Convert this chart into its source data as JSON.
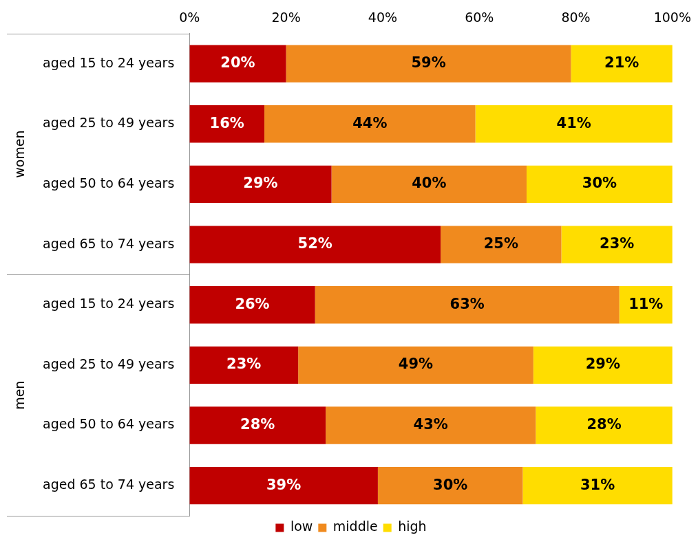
{
  "chart_data": {
    "type": "bar",
    "orientation": "horizontal",
    "stacked": true,
    "categories": [
      "aged 15 to 24 years",
      "aged 25 to 49 years",
      "aged 50 to 64 years",
      "aged 65 to 74 years",
      "aged 15 to 24 years",
      "aged 25 to 49 years",
      "aged 50 to 64 years",
      "aged 65 to 74 years"
    ],
    "series": [
      {
        "name": "low",
        "color": "#c00000",
        "values": [
          20,
          15.5,
          29.4,
          52,
          26,
          22.5,
          28.2,
          39
        ]
      },
      {
        "name": "middle",
        "color": "#f08a1e",
        "values": [
          59,
          43.7,
          40.4,
          25,
          63,
          48.7,
          43.5,
          30
        ]
      },
      {
        "name": "high",
        "color": "#ffdd00",
        "values": [
          21,
          40.8,
          30.2,
          23,
          11,
          28.8,
          28.3,
          31
        ]
      }
    ],
    "xlim": [
      0,
      100
    ],
    "xticks": [
      {
        "value": 0,
        "label": "0%"
      },
      {
        "value": 20,
        "label": "20%"
      },
      {
        "value": 40,
        "label": "40%"
      },
      {
        "value": 60,
        "label": "60%"
      },
      {
        "value": 80,
        "label": "80%"
      },
      {
        "value": 100,
        "label": "100%"
      }
    ],
    "value_labels": [
      [
        "20%",
        "16%",
        "29%",
        "52%",
        "26%",
        "23%",
        "28%",
        "39%"
      ],
      [
        "59%",
        "44%",
        "40%",
        "25%",
        "63%",
        "49%",
        "43%",
        "30%"
      ],
      [
        "21%",
        "41%",
        "30%",
        "23%",
        "11%",
        "29%",
        "28%",
        "31%"
      ]
    ],
    "annotations": [
      "women",
      "men"
    ],
    "grid": false,
    "legend": "bottom"
  }
}
